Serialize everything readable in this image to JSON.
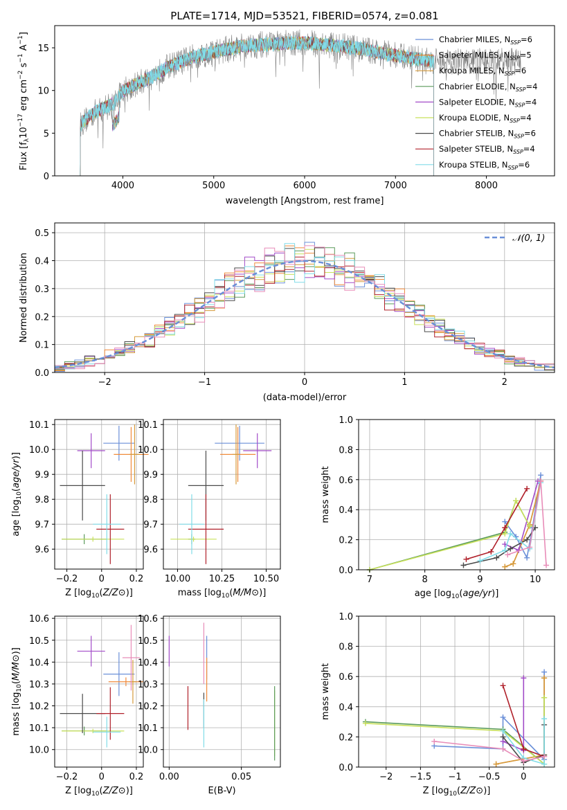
{
  "colors": {
    "grid": "#b0b0b0",
    "axes": "#000000"
  },
  "chart_data": [
    {
      "id": "spectrum",
      "type": "line",
      "title": "PLATE=1714, MJD=53521, FIBERID=0574, z=0.081",
      "xlabel": "wavelength [Angstrom, rest frame]",
      "ylabel": "Flux [f_λ 10^-17 erg cm^-2 s^-1 A^-1]",
      "xlim": [
        3250,
        8750
      ],
      "ylim": [
        0,
        17.6
      ],
      "xticks": [
        4000,
        5000,
        6000,
        7000,
        8000
      ],
      "yticks": [
        0,
        5,
        10,
        15
      ],
      "grid": false,
      "legend_position": "right",
      "legend": [
        {
          "label": "Chabrier MILES, N_SSP=6",
          "color": "#6a8fd8"
        },
        {
          "label": "Salpeter MILES, N_SSP=5",
          "color": "#f08a3a"
        },
        {
          "label": "Kroupa MILES, N_SSP=6",
          "color": "#d59a3a"
        },
        {
          "label": "Chabrier ELODIE, N_SSP=4",
          "color": "#5a9a5a"
        },
        {
          "label": "Salpeter ELODIE, N_SSP=4",
          "color": "#a24bc8"
        },
        {
          "label": "Kroupa ELODIE, N_SSP=4",
          "color": "#c8e05a"
        },
        {
          "label": "Chabrier STELIB, N_SSP=6",
          "color": "#4a4a4a"
        },
        {
          "label": "Salpeter STELIB, N_SSP=4",
          "color": "#b0202a"
        },
        {
          "label": "Kroupa STELIB, N_SSP=6",
          "color": "#80dce8"
        }
      ],
      "continuum": {
        "x": [
          3530,
          3700,
          3900,
          4000,
          4300,
          4500,
          4800,
          5000,
          5300,
          5600,
          6000,
          6300,
          6600,
          7000,
          7300,
          7420
        ],
        "y": [
          6.0,
          7.5,
          8.5,
          10.0,
          11.5,
          12.8,
          14.0,
          14.5,
          15.2,
          15.4,
          15.6,
          15.3,
          14.9,
          14.1,
          13.6,
          13.4
        ]
      },
      "observed_series": {
        "name": "data",
        "color": "#808080",
        "x_range": [
          3530,
          8380
        ]
      }
    },
    {
      "id": "residuals",
      "type": "line",
      "xlabel": "(data-model)/error",
      "ylabel": "Normed distribution",
      "xlim": [
        -2.5,
        2.5
      ],
      "ylim": [
        0,
        0.535
      ],
      "xticks": [
        -2,
        -1,
        0,
        1,
        2
      ],
      "yticks": [
        0.0,
        0.1,
        0.2,
        0.3,
        0.4,
        0.5
      ],
      "grid": true,
      "legend_position": "top-right",
      "legend": [
        {
          "label": "𝒩(0, 1)",
          "color": "#6a8fd8",
          "dashed": true
        }
      ],
      "bin_width": 0.1
    },
    {
      "id": "age_vs_Z",
      "type": "scatter",
      "xlabel": "Z [log10(Z/Z⊙)]",
      "ylabel": "age  [log10(age/yr)]",
      "xlim": [
        -0.27,
        0.24
      ],
      "ylim": [
        9.52,
        10.12
      ],
      "xticks": [
        -0.2,
        0.0,
        0.2
      ],
      "yticks": [
        9.6,
        9.7,
        9.8,
        9.9,
        10.0,
        10.1
      ],
      "grid": true,
      "points": [
        {
          "color": "#6a8fd8",
          "x": 0.1,
          "y": 10.025,
          "xerr": 0.09,
          "yerr": 0.07
        },
        {
          "color": "#f08a3a",
          "x": 0.17,
          "y": 9.98,
          "xerr": 0.1,
          "yerr": 0.11
        },
        {
          "color": "#d59a3a",
          "x": 0.19,
          "y": 9.98,
          "xerr": 0.03,
          "yerr": 0.12
        },
        {
          "color": "#5a9a5a",
          "x": -0.1,
          "y": 9.64,
          "xerr": 0.13,
          "yerr": 0.02
        },
        {
          "color": "#a24bc8",
          "x": -0.06,
          "y": 9.995,
          "xerr": 0.08,
          "yerr": 0.07
        },
        {
          "color": "#c8e05a",
          "x": -0.05,
          "y": 9.64,
          "xerr": 0.18,
          "yerr": 0.01
        },
        {
          "color": "#4a4a4a",
          "x": -0.11,
          "y": 9.855,
          "xerr": 0.13,
          "yerr": 0.14
        },
        {
          "color": "#b0202a",
          "x": 0.05,
          "y": 9.68,
          "xerr": 0.08,
          "yerr": 0.14
        },
        {
          "color": "#80dce8",
          "x": 0.03,
          "y": 9.7,
          "xerr": 0.08,
          "yerr": 0.12
        }
      ]
    },
    {
      "id": "age_vs_mass",
      "type": "scatter",
      "xlabel": "mass [log10(M/M⊙)]",
      "xlim": [
        9.92,
        10.58
      ],
      "ylim": [
        9.52,
        10.12
      ],
      "xticks": [
        10.0,
        10.25,
        10.5
      ],
      "xtick_labels": [
        "10.00",
        "10.25",
        "10.50"
      ],
      "yticks": [
        9.6,
        9.7,
        9.8,
        9.9,
        10.0,
        10.1
      ],
      "grid": true,
      "points": [
        {
          "color": "#6a8fd8",
          "x": 10.35,
          "y": 10.025,
          "xerr": 0.14,
          "yerr": 0.07
        },
        {
          "color": "#f08a3a",
          "x": 10.34,
          "y": 9.98,
          "xerr": 0.1,
          "yerr": 0.11
        },
        {
          "color": "#d59a3a",
          "x": 10.33,
          "y": 9.98,
          "xerr": 0.02,
          "yerr": 0.12
        },
        {
          "color": "#5a9a5a",
          "x": 10.08,
          "y": 9.64,
          "xerr": 0.02,
          "yerr": 0.02
        },
        {
          "color": "#a24bc8",
          "x": 10.45,
          "y": 9.995,
          "xerr": 0.08,
          "yerr": 0.07
        },
        {
          "color": "#c8e05a",
          "x": 10.09,
          "y": 9.64,
          "xerr": 0.13,
          "yerr": 0.01
        },
        {
          "color": "#4a4a4a",
          "x": 10.16,
          "y": 9.855,
          "xerr": 0.1,
          "yerr": 0.14
        },
        {
          "color": "#b0202a",
          "x": 10.16,
          "y": 9.68,
          "xerr": 0.1,
          "yerr": 0.14
        },
        {
          "color": "#80dce8",
          "x": 10.08,
          "y": 9.7,
          "xerr": 0.07,
          "yerr": 0.12
        }
      ]
    },
    {
      "id": "massweight_vs_age",
      "type": "line",
      "xlabel": "age  [log10(age/yr)]",
      "ylabel": "mass weight",
      "xlim": [
        6.8,
        10.35
      ],
      "ylim": [
        0,
        1.0
      ],
      "xticks": [
        7,
        8,
        9,
        10
      ],
      "yticks": [
        0.0,
        0.2,
        0.4,
        0.6,
        0.8,
        1.0
      ],
      "grid": true,
      "series": [
        {
          "color": "#6a8fd8",
          "x": [
            9.45,
            9.65,
            9.85,
            9.95,
            10.1
          ],
          "y": [
            0.32,
            0.22,
            0.08,
            0.28,
            0.63
          ]
        },
        {
          "color": "#f08a3a",
          "x": [
            9.45,
            9.6,
            9.9,
            10.1
          ],
          "y": [
            0.02,
            0.04,
            0.3,
            0.59
          ]
        },
        {
          "color": "#d59a3a",
          "x": [
            9.45,
            9.6,
            9.9,
            10.1
          ],
          "y": [
            0.02,
            0.04,
            0.3,
            0.59
          ]
        },
        {
          "color": "#5a9a5a",
          "x": [
            7.0,
            9.45,
            9.65,
            9.9
          ],
          "y": [
            0.0,
            0.25,
            0.46,
            0.29
          ]
        },
        {
          "color": "#a24bc8",
          "x": [
            9.45,
            9.7,
            10.05
          ],
          "y": [
            0.17,
            0.13,
            0.59
          ]
        },
        {
          "color": "#c8e05a",
          "x": [
            7.0,
            9.45,
            9.65,
            9.9
          ],
          "y": [
            0.0,
            0.24,
            0.46,
            0.29
          ]
        },
        {
          "color": "#4a4a4a",
          "x": [
            8.7,
            9.3,
            9.55,
            9.85,
            10.0
          ],
          "y": [
            0.03,
            0.08,
            0.14,
            0.2,
            0.28
          ]
        },
        {
          "color": "#b0202a",
          "x": [
            8.75,
            9.2,
            9.45,
            9.85
          ],
          "y": [
            0.07,
            0.12,
            0.28,
            0.54
          ]
        },
        {
          "color": "#80dce8",
          "x": [
            9.0,
            9.45,
            9.55,
            9.9,
            10.1
          ],
          "y": [
            0.06,
            0.13,
            0.24,
            0.14,
            0.58
          ]
        },
        {
          "color": "#e88cb8",
          "x": [
            9.5,
            9.9,
            10.1,
            10.2
          ],
          "y": [
            0.1,
            0.15,
            0.59,
            0.03
          ]
        }
      ]
    },
    {
      "id": "mass_vs_Z",
      "type": "scatter",
      "xlabel": "Z [log10(Z/Z⊙)]",
      "ylabel": "mass [log10(M/M⊙)]",
      "xlim": [
        -0.27,
        0.24
      ],
      "ylim": [
        9.92,
        10.61
      ],
      "xticks": [
        -0.2,
        0.0,
        0.2
      ],
      "yticks": [
        10.0,
        10.1,
        10.2,
        10.3,
        10.4,
        10.5,
        10.6
      ],
      "grid": true,
      "points": [
        {
          "color": "#6a8fd8",
          "x": 0.1,
          "y": 10.345,
          "xerr": 0.09,
          "yerr": 0.1
        },
        {
          "color": "#f08a3a",
          "x": 0.14,
          "y": 10.31,
          "xerr": 0.1,
          "yerr": 0.02
        },
        {
          "color": "#d59a3a",
          "x": 0.18,
          "y": 10.31,
          "xerr": 0.02,
          "yerr": 0.1
        },
        {
          "color": "#5a9a5a",
          "x": -0.1,
          "y": 10.085,
          "xerr": 0.13,
          "yerr": 0.02
        },
        {
          "color": "#a24bc8",
          "x": -0.06,
          "y": 10.45,
          "xerr": 0.08,
          "yerr": 0.07
        },
        {
          "color": "#c8e05a",
          "x": -0.05,
          "y": 10.085,
          "xerr": 0.18,
          "yerr": 0.01
        },
        {
          "color": "#4a4a4a",
          "x": -0.11,
          "y": 10.165,
          "xerr": 0.13,
          "yerr": 0.09
        },
        {
          "color": "#b0202a",
          "x": 0.05,
          "y": 10.165,
          "xerr": 0.08,
          "yerr": 0.12
        },
        {
          "color": "#80dce8",
          "x": 0.03,
          "y": 10.08,
          "xerr": 0.08,
          "yerr": 0.07
        },
        {
          "color": "#e88cb8",
          "x": 0.17,
          "y": 10.42,
          "xerr": 0.05,
          "yerr": 0.15
        }
      ]
    },
    {
      "id": "mass_vs_ebv",
      "type": "scatter",
      "xlabel": "E(B-V)",
      "xlim": [
        -0.004,
        0.077
      ],
      "ylim": [
        9.92,
        10.61
      ],
      "xticks": [
        0.0,
        0.05
      ],
      "xtick_labels": [
        "0.00",
        "0.05"
      ],
      "yticks": [
        10.0,
        10.1,
        10.2,
        10.3,
        10.4,
        10.5,
        10.6
      ],
      "grid": true,
      "points": [
        {
          "color": "#6a8fd8",
          "x": 0.026,
          "y": 10.42,
          "xerr": 0.0,
          "yerr": 0.1
        },
        {
          "color": "#f08a3a",
          "x": 0.026,
          "y": 10.32,
          "xerr": 0.0,
          "yerr": 0.1
        },
        {
          "color": "#a24bc8",
          "x": 0.0,
          "y": 10.45,
          "xerr": 0.0,
          "yerr": 0.07
        },
        {
          "color": "#c8e05a",
          "x": 0.073,
          "y": 10.12,
          "xerr": 0.0,
          "yerr": 0.15
        },
        {
          "color": "#5a9a5a",
          "x": 0.073,
          "y": 10.12,
          "xerr": 0.0,
          "yerr": 0.17
        },
        {
          "color": "#4a4a4a",
          "x": 0.024,
          "y": 10.18,
          "xerr": 0.0,
          "yerr": 0.08
        },
        {
          "color": "#b0202a",
          "x": 0.013,
          "y": 10.19,
          "xerr": 0.0,
          "yerr": 0.1
        },
        {
          "color": "#80dce8",
          "x": 0.024,
          "y": 10.12,
          "xerr": 0.0,
          "yerr": 0.11
        },
        {
          "color": "#e88cb8",
          "x": 0.024,
          "y": 10.44,
          "xerr": 0.0,
          "yerr": 0.14
        }
      ]
    },
    {
      "id": "massweight_vs_Z",
      "type": "line",
      "xlabel": "Z [log10(Z/Z⊙)]",
      "ylabel": "mass weight",
      "xlim": [
        -2.4,
        0.45
      ],
      "ylim": [
        0,
        1.0
      ],
      "xticks": [
        -2.0,
        -1.5,
        -1.0,
        -0.5,
        0.0
      ],
      "yticks": [
        0.0,
        0.2,
        0.4,
        0.6,
        0.8,
        1.0
      ],
      "grid": true,
      "series": [
        {
          "color": "#6a8fd8",
          "x": [
            -1.3,
            -0.3,
            -0.3,
            0.3,
            0.3
          ],
          "y": [
            0.14,
            0.12,
            0.33,
            0.05,
            0.63
          ]
        },
        {
          "color": "#f08a3a",
          "x": [
            -0.4,
            0.3,
            0.3
          ],
          "y": [
            0.02,
            0.08,
            0.59
          ]
        },
        {
          "color": "#d59a3a",
          "x": [
            -0.4,
            0.3,
            0.3
          ],
          "y": [
            0.02,
            0.08,
            0.59
          ]
        },
        {
          "color": "#5a9a5a",
          "x": [
            -2.3,
            -0.3,
            0.3,
            0.3
          ],
          "y": [
            0.3,
            0.25,
            0.02,
            0.46
          ]
        },
        {
          "color": "#a24bc8",
          "x": [
            -0.3,
            0.0,
            0.0
          ],
          "y": [
            0.17,
            0.11,
            0.59
          ]
        },
        {
          "color": "#c8e05a",
          "x": [
            -2.3,
            -0.3,
            0.3,
            0.3
          ],
          "y": [
            0.29,
            0.24,
            0.02,
            0.46
          ]
        },
        {
          "color": "#4a4a4a",
          "x": [
            -0.3,
            0.0,
            0.3,
            0.3
          ],
          "y": [
            0.2,
            0.03,
            0.08,
            0.28
          ]
        },
        {
          "color": "#b0202a",
          "x": [
            -0.3,
            0.0,
            0.3
          ],
          "y": [
            0.54,
            0.12,
            0.07
          ]
        },
        {
          "color": "#80dce8",
          "x": [
            -0.3,
            0.0,
            0.3,
            0.3
          ],
          "y": [
            0.24,
            0.06,
            0.02,
            0.32
          ]
        },
        {
          "color": "#e88cb8",
          "x": [
            -1.3,
            -0.3,
            0.0,
            0.3
          ],
          "y": [
            0.17,
            0.12,
            0.04,
            0.07
          ]
        }
      ]
    }
  ]
}
